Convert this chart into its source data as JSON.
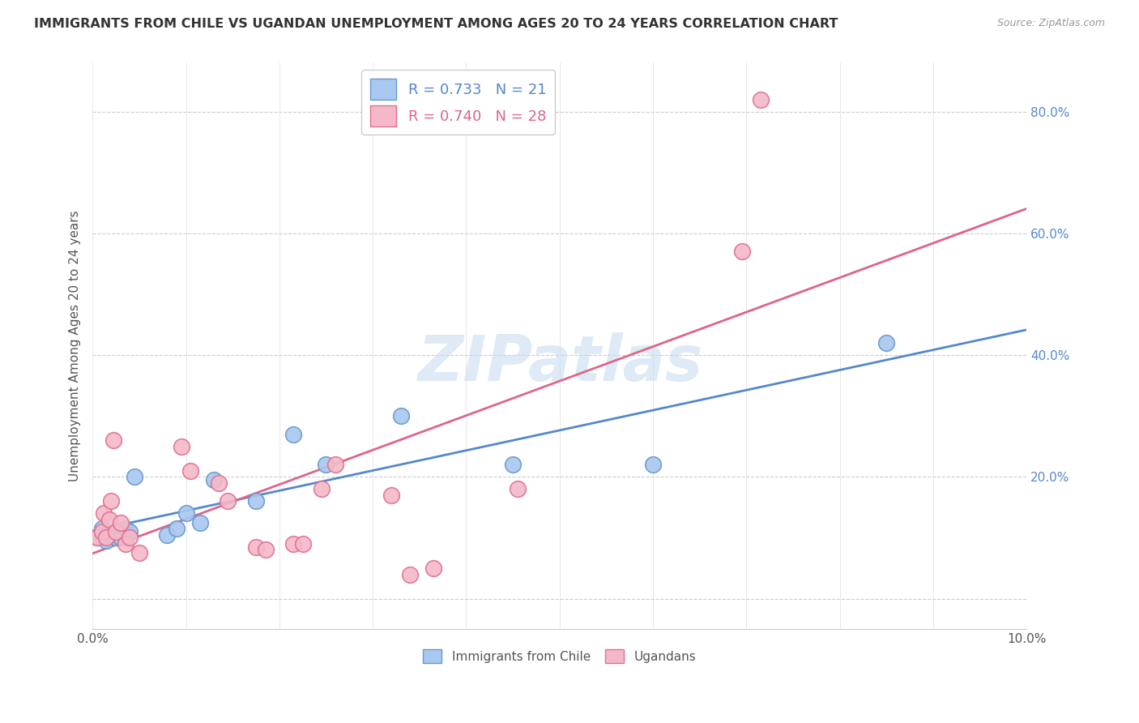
{
  "title": "IMMIGRANTS FROM CHILE VS UGANDAN UNEMPLOYMENT AMONG AGES 20 TO 24 YEARS CORRELATION CHART",
  "source": "Source: ZipAtlas.com",
  "ylabel": "Unemployment Among Ages 20 to 24 years",
  "xlim": [
    0.0,
    0.1
  ],
  "ylim": [
    -0.05,
    0.88
  ],
  "yticks": [
    0.0,
    0.2,
    0.4,
    0.6,
    0.8
  ],
  "ytick_labels": [
    "",
    "20.0%",
    "40.0%",
    "60.0%",
    "80.0%"
  ],
  "xticks": [
    0.0,
    0.01,
    0.02,
    0.03,
    0.04,
    0.05,
    0.06,
    0.07,
    0.08,
    0.09,
    0.1
  ],
  "chile_color": "#A8C8F0",
  "chile_edge_color": "#6699CC",
  "ugandan_color": "#F5B8C8",
  "ugandan_edge_color": "#E07090",
  "trend_chile_color": "#5588CC",
  "trend_ugandan_color": "#DD6688",
  "trend_ext_color": "#BBBBBB",
  "ytick_color": "#5588CC",
  "R_chile": "0.733",
  "N_chile": "21",
  "R_ugandan": "0.740",
  "N_ugandan": "28",
  "watermark": "ZIPatlas",
  "chile_points": [
    [
      0.0005,
      0.1
    ],
    [
      0.001,
      0.115
    ],
    [
      0.0015,
      0.095
    ],
    [
      0.002,
      0.105
    ],
    [
      0.0025,
      0.1
    ],
    [
      0.003,
      0.1
    ],
    [
      0.0035,
      0.115
    ],
    [
      0.004,
      0.11
    ],
    [
      0.0045,
      0.2
    ],
    [
      0.008,
      0.105
    ],
    [
      0.009,
      0.115
    ],
    [
      0.01,
      0.14
    ],
    [
      0.0115,
      0.125
    ],
    [
      0.013,
      0.195
    ],
    [
      0.0175,
      0.16
    ],
    [
      0.0215,
      0.27
    ],
    [
      0.025,
      0.22
    ],
    [
      0.033,
      0.3
    ],
    [
      0.045,
      0.22
    ],
    [
      0.06,
      0.22
    ],
    [
      0.085,
      0.42
    ]
  ],
  "ugandan_points": [
    [
      0.0005,
      0.1
    ],
    [
      0.001,
      0.11
    ],
    [
      0.0012,
      0.14
    ],
    [
      0.0015,
      0.1
    ],
    [
      0.0018,
      0.13
    ],
    [
      0.002,
      0.16
    ],
    [
      0.0022,
      0.26
    ],
    [
      0.0025,
      0.11
    ],
    [
      0.003,
      0.125
    ],
    [
      0.0035,
      0.09
    ],
    [
      0.004,
      0.1
    ],
    [
      0.005,
      0.075
    ],
    [
      0.0095,
      0.25
    ],
    [
      0.0105,
      0.21
    ],
    [
      0.0135,
      0.19
    ],
    [
      0.0145,
      0.16
    ],
    [
      0.0175,
      0.085
    ],
    [
      0.0185,
      0.08
    ],
    [
      0.0215,
      0.09
    ],
    [
      0.0225,
      0.09
    ],
    [
      0.0245,
      0.18
    ],
    [
      0.026,
      0.22
    ],
    [
      0.032,
      0.17
    ],
    [
      0.034,
      0.04
    ],
    [
      0.0365,
      0.05
    ],
    [
      0.0455,
      0.18
    ],
    [
      0.0695,
      0.57
    ],
    [
      0.0715,
      0.82
    ]
  ]
}
